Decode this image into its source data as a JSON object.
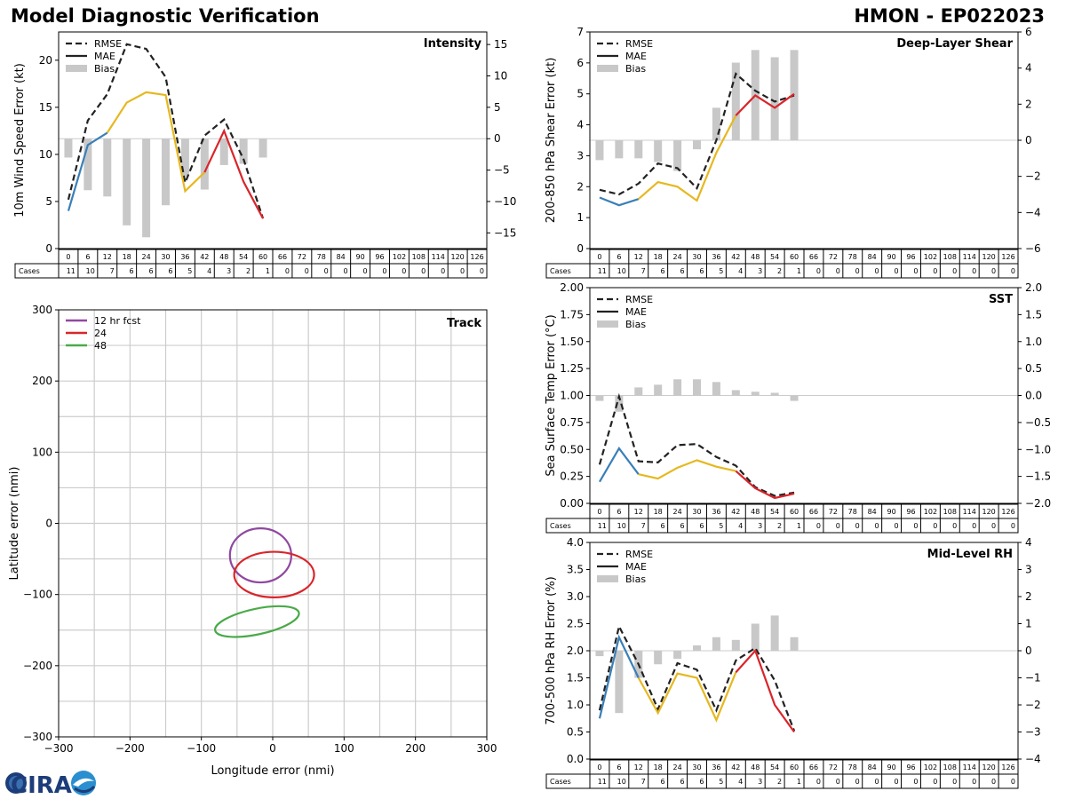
{
  "header": {
    "title": "Model Diagnostic Verification",
    "storm": "HMON - EP022023"
  },
  "logo": {
    "text": "CIRA"
  },
  "colors": {
    "rmse": "#222222",
    "mae_early": "#3a7fb8",
    "mae_mid": "#e6b820",
    "mae_late": "#d9252a",
    "bias": "#c8c8c8",
    "grid": "#cccccc"
  },
  "legend_labels": {
    "rmse": "RMSE",
    "mae": "MAE",
    "bias": "Bias"
  },
  "table": {
    "hours": [
      "0",
      "6",
      "12",
      "18",
      "24",
      "30",
      "36",
      "42",
      "48",
      "54",
      "60",
      "66",
      "72",
      "78",
      "84",
      "90",
      "96",
      "102",
      "108",
      "114",
      "120",
      "126"
    ],
    "cases_label": "Cases",
    "cases": [
      "11",
      "10",
      "7",
      "6",
      "6",
      "6",
      "5",
      "4",
      "3",
      "2",
      "1",
      "0",
      "0",
      "0",
      "0",
      "0",
      "0",
      "0",
      "0",
      "0",
      "0",
      "0"
    ]
  },
  "chart_data": [
    {
      "id": "intensity",
      "type": "line",
      "title": "Intensity",
      "ylabel": "10m Wind Speed Error (kt)",
      "ylim": [
        0,
        23
      ],
      "yticks": [
        "0",
        "5",
        "10",
        "15",
        "20"
      ],
      "y2lim": [
        -17.5,
        17
      ],
      "y2ticks": [
        "−15",
        "−10",
        "−5",
        "0",
        "5",
        "10",
        "15"
      ],
      "x": [
        0,
        6,
        12,
        18,
        24,
        30,
        36,
        42,
        48,
        54,
        60
      ],
      "rmse": [
        5.2,
        13.6,
        16.4,
        21.7,
        21.2,
        18.2,
        7.0,
        12.0,
        13.7,
        9.5,
        3.2
      ],
      "mae": [
        4.0,
        11.0,
        12.3,
        15.5,
        16.6,
        16.3,
        6.1,
        8.1,
        12.5,
        7.1,
        3.2
      ],
      "bias": [
        -3.0,
        -8.2,
        -9.2,
        -13.8,
        -15.7,
        -10.6,
        -6.0,
        -8.1,
        -4.2,
        -4.0,
        -3.0
      ]
    },
    {
      "id": "shear",
      "type": "line",
      "title": "Deep-Layer Shear",
      "ylabel": "200-850 hPa Shear Error (kt)",
      "ylim": [
        0,
        7
      ],
      "yticks": [
        "0",
        "1",
        "2",
        "3",
        "4",
        "5",
        "6",
        "7"
      ],
      "y2lim": [
        -6,
        6
      ],
      "y2ticks": [
        "−6",
        "−4",
        "−2",
        "0",
        "2",
        "4",
        "6"
      ],
      "x": [
        0,
        6,
        12,
        18,
        24,
        30,
        36,
        42,
        48,
        54,
        60
      ],
      "rmse": [
        1.9,
        1.75,
        2.1,
        2.75,
        2.6,
        1.95,
        3.5,
        5.65,
        5.1,
        4.75,
        4.95
      ],
      "mae": [
        1.65,
        1.4,
        1.6,
        2.15,
        2.0,
        1.55,
        3.1,
        4.3,
        4.95,
        4.55,
        5.0
      ],
      "bias": [
        -1.1,
        -1.0,
        -1.0,
        -1.2,
        -1.7,
        -0.5,
        1.8,
        4.3,
        5.0,
        4.6,
        5.0
      ]
    },
    {
      "id": "sst",
      "type": "line",
      "title": "SST",
      "ylabel": "Sea Surface Temp Error (°C)",
      "ylim": [
        0,
        2.0
      ],
      "yticks": [
        "0.00",
        "0.25",
        "0.50",
        "0.75",
        "1.00",
        "1.25",
        "1.50",
        "1.75",
        "2.00"
      ],
      "y2lim": [
        -2.0,
        2.0
      ],
      "y2ticks": [
        "−2.0",
        "−1.5",
        "−1.0",
        "−0.5",
        "0.0",
        "0.5",
        "1.0",
        "1.5",
        "2.0"
      ],
      "x": [
        0,
        6,
        12,
        18,
        24,
        30,
        36,
        42,
        48,
        54,
        60
      ],
      "rmse": [
        0.36,
        0.99,
        0.39,
        0.38,
        0.54,
        0.55,
        0.43,
        0.35,
        0.15,
        0.07,
        0.1
      ],
      "mae": [
        0.2,
        0.51,
        0.27,
        0.23,
        0.33,
        0.4,
        0.34,
        0.3,
        0.14,
        0.05,
        0.09
      ],
      "bias": [
        -0.1,
        -0.3,
        0.15,
        0.2,
        0.3,
        0.3,
        0.25,
        0.1,
        0.07,
        0.05,
        -0.1
      ]
    },
    {
      "id": "rh",
      "type": "line",
      "title": "Mid-Level RH",
      "ylabel": "700-500 hPa RH Error (%)",
      "ylim": [
        0,
        4.0
      ],
      "yticks": [
        "0.0",
        "0.5",
        "1.0",
        "1.5",
        "2.0",
        "2.5",
        "3.0",
        "3.5",
        "4.0"
      ],
      "y2lim": [
        -4,
        4
      ],
      "y2ticks": [
        "−4",
        "−3",
        "−2",
        "−1",
        "0",
        "1",
        "2",
        "3",
        "4"
      ],
      "x": [
        0,
        6,
        12,
        18,
        24,
        30,
        36,
        42,
        48,
        54,
        60
      ],
      "rmse": [
        0.9,
        2.45,
        1.75,
        0.92,
        1.77,
        1.65,
        0.9,
        1.82,
        2.05,
        1.45,
        0.52
      ],
      "mae": [
        0.75,
        2.25,
        1.5,
        0.85,
        1.58,
        1.5,
        0.72,
        1.6,
        2.0,
        1.0,
        0.5
      ],
      "bias": [
        -0.2,
        -2.3,
        -1.0,
        -0.5,
        -0.3,
        0.2,
        0.5,
        0.4,
        1.0,
        1.3,
        0.5
      ]
    },
    {
      "id": "track",
      "type": "ellipse",
      "title": "Track",
      "xlabel": "Longitude error (nmi)",
      "ylabel": "Latitude error (nmi)",
      "xlim": [
        -300,
        300
      ],
      "ylim": [
        -300,
        300
      ],
      "xticks": [
        "−300",
        "−200",
        "−100",
        "0",
        "100",
        "200",
        "300"
      ],
      "yticks": [
        "−300",
        "−200",
        "−100",
        "0",
        "100",
        "200",
        "300"
      ],
      "xtick_values": [
        -300,
        -200,
        -100,
        0,
        100,
        200,
        300
      ],
      "ytick_values": [
        -300,
        -200,
        -100,
        0,
        100,
        200,
        300
      ],
      "ellipses": [
        {
          "label": "12 hr fcst",
          "color": "#9048a0",
          "cx": -17,
          "cy": -45,
          "rx": 43,
          "ry": 38,
          "angle": 0
        },
        {
          "label": "24",
          "color": "#d9252a",
          "cx": 2,
          "cy": -72,
          "rx": 56,
          "ry": 32,
          "angle": 0
        },
        {
          "label": "48",
          "color": "#4aaa48",
          "cx": -22,
          "cy": -138,
          "rx": 60,
          "ry": 18,
          "angle": -12
        }
      ]
    }
  ]
}
